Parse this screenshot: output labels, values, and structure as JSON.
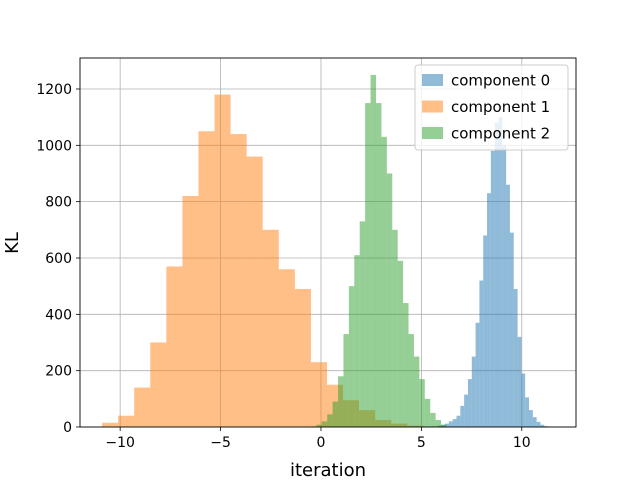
{
  "chart_data": {
    "type": "histogram",
    "title": "",
    "xlabel": "iteration",
    "ylabel": "KL",
    "xlim": [
      -12,
      12.7
    ],
    "ylim": [
      0,
      1310
    ],
    "x_ticks": [
      -10,
      -5,
      0,
      5,
      10
    ],
    "x_tick_labels": [
      "−10",
      "−5",
      "0",
      "5",
      "10"
    ],
    "y_ticks": [
      0,
      200,
      400,
      600,
      800,
      1000,
      1200
    ],
    "y_tick_labels": [
      "0",
      "200",
      "400",
      "600",
      "800",
      "1000",
      "1200"
    ],
    "grid": true,
    "legend_position": "top-right",
    "series": [
      {
        "name": "component 0",
        "color": "#1f77b4",
        "opacity": 0.5,
        "bins": [
          [
            5.8,
            5.99,
            5
          ],
          [
            5.99,
            6.18,
            8
          ],
          [
            6.18,
            6.37,
            12
          ],
          [
            6.37,
            6.56,
            20
          ],
          [
            6.56,
            6.75,
            28
          ],
          [
            6.75,
            6.94,
            40
          ],
          [
            6.94,
            7.13,
            75
          ],
          [
            7.13,
            7.32,
            115
          ],
          [
            7.32,
            7.51,
            170
          ],
          [
            7.51,
            7.7,
            250
          ],
          [
            7.7,
            7.89,
            370
          ],
          [
            7.89,
            8.08,
            520
          ],
          [
            8.08,
            8.27,
            680
          ],
          [
            8.27,
            8.46,
            830
          ],
          [
            8.46,
            8.65,
            980
          ],
          [
            8.65,
            8.84,
            1080
          ],
          [
            8.84,
            9.03,
            1100
          ],
          [
            9.03,
            9.22,
            1000
          ],
          [
            9.22,
            9.41,
            860
          ],
          [
            9.41,
            9.6,
            690
          ],
          [
            9.6,
            9.79,
            490
          ],
          [
            9.79,
            9.98,
            320
          ],
          [
            9.98,
            10.17,
            190
          ],
          [
            10.17,
            10.36,
            105
          ],
          [
            10.36,
            10.55,
            60
          ],
          [
            10.55,
            10.74,
            35
          ],
          [
            10.74,
            10.93,
            18
          ],
          [
            10.93,
            11.12,
            8
          ],
          [
            11.12,
            11.31,
            3
          ]
        ]
      },
      {
        "name": "component 1",
        "color": "#ff7f0e",
        "opacity": 0.5,
        "bins": [
          [
            -10.9,
            -10.1,
            15
          ],
          [
            -10.1,
            -9.3,
            40
          ],
          [
            -9.3,
            -8.5,
            140
          ],
          [
            -8.5,
            -7.7,
            300
          ],
          [
            -7.7,
            -6.9,
            570
          ],
          [
            -6.9,
            -6.1,
            820
          ],
          [
            -6.1,
            -5.3,
            1050
          ],
          [
            -5.3,
            -4.5,
            1180
          ],
          [
            -4.5,
            -3.7,
            1040
          ],
          [
            -3.7,
            -2.9,
            960
          ],
          [
            -2.9,
            -2.1,
            700
          ],
          [
            -2.1,
            -1.3,
            560
          ],
          [
            -1.3,
            -0.5,
            490
          ],
          [
            -0.5,
            0.3,
            230
          ],
          [
            0.3,
            1.1,
            150
          ],
          [
            1.1,
            1.9,
            95
          ],
          [
            1.9,
            2.7,
            60
          ],
          [
            2.7,
            3.5,
            25
          ],
          [
            3.5,
            4.3,
            12
          ],
          [
            4.3,
            5.1,
            5
          ],
          [
            5.1,
            5.9,
            2
          ],
          [
            5.9,
            6.7,
            1
          ]
        ]
      },
      {
        "name": "component 2",
        "color": "#2ca02c",
        "opacity": 0.5,
        "bins": [
          [
            -0.5,
            -0.23,
            2
          ],
          [
            -0.23,
            0.04,
            8
          ],
          [
            0.04,
            0.31,
            20
          ],
          [
            0.31,
            0.58,
            45
          ],
          [
            0.58,
            0.85,
            90
          ],
          [
            0.85,
            1.12,
            180
          ],
          [
            1.12,
            1.39,
            330
          ],
          [
            1.39,
            1.66,
            500
          ],
          [
            1.66,
            1.93,
            610
          ],
          [
            1.93,
            2.2,
            730
          ],
          [
            2.2,
            2.47,
            1150
          ],
          [
            2.47,
            2.74,
            1250
          ],
          [
            2.74,
            3.01,
            1150
          ],
          [
            3.01,
            3.28,
            1030
          ],
          [
            3.28,
            3.55,
            900
          ],
          [
            3.55,
            3.82,
            700
          ],
          [
            3.82,
            4.09,
            590
          ],
          [
            4.09,
            4.36,
            440
          ],
          [
            4.36,
            4.63,
            330
          ],
          [
            4.63,
            4.9,
            250
          ],
          [
            4.9,
            5.17,
            170
          ],
          [
            5.17,
            5.44,
            100
          ],
          [
            5.44,
            5.71,
            50
          ],
          [
            5.71,
            5.98,
            25
          ],
          [
            5.98,
            6.25,
            8
          ]
        ]
      }
    ]
  }
}
